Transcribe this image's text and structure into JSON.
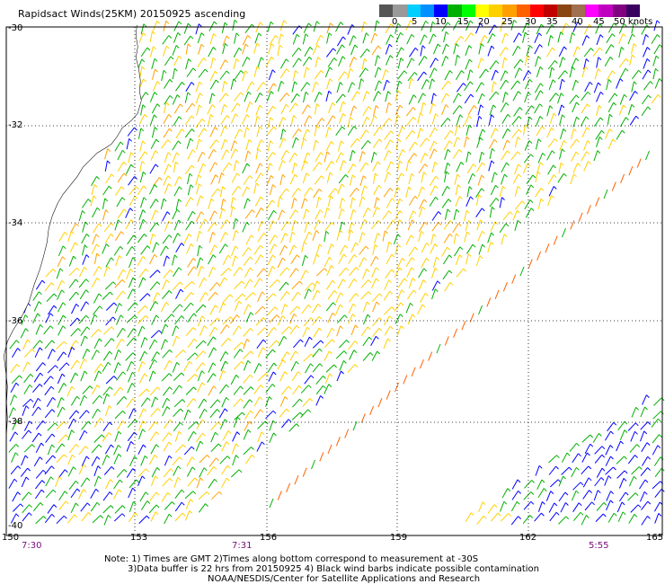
{
  "title": "Rapidsact Winds(25KM) 20150925 ascending",
  "legend": {
    "colors": [
      "#555555",
      "#999999",
      "#00cfff",
      "#0090ff",
      "#0000ff",
      "#00b000",
      "#00ff00",
      "#ffff00",
      "#ffd000",
      "#ffa000",
      "#ff6000",
      "#ff0000",
      "#c00000",
      "#8b4513",
      "#a07050",
      "#ff00ff",
      "#c000c0",
      "#800080",
      "#3a0060"
    ],
    "labels": [
      "0",
      "5",
      "10",
      "15",
      "20",
      "25",
      "30",
      "35",
      "40",
      "45",
      "50 knots"
    ]
  },
  "axes": {
    "lat_labels": [
      "-30",
      "-32",
      "-34",
      "-36",
      "-38",
      "-40"
    ],
    "lon_labels": [
      "150",
      "153",
      "156",
      "159",
      "162",
      "165"
    ]
  },
  "time_labels": [
    "7:30",
    "7:31",
    "5:55"
  ],
  "notes": [
    "Note: 1) Times are GMT 2)Times along bottom correspond to measurement at -30S",
    "3)Data buffer is 22 hrs from 20150925 4) Black wind barbs indicate possible contamination",
    "NOAA/NESDIS/Center for Satellite Applications and Research"
  ]
}
